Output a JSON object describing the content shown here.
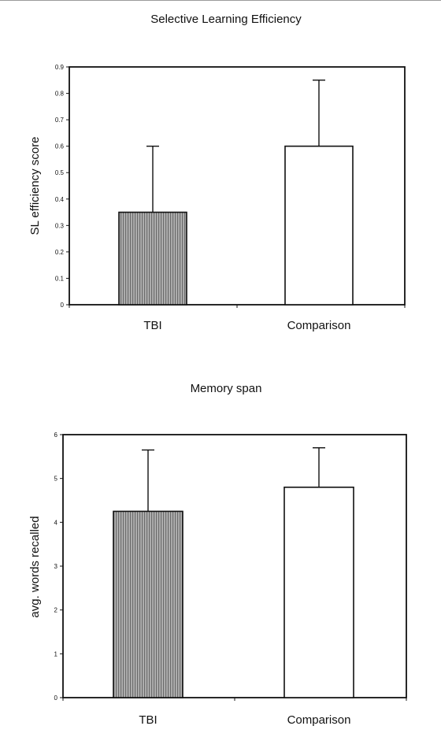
{
  "chart_data": [
    {
      "type": "bar",
      "title": "Selective Learning Efficiency",
      "ylabel": "SL efficiency score",
      "xlabel": "",
      "categories": [
        "TBI",
        "Comparison"
      ],
      "values": [
        0.35,
        0.6
      ],
      "error_upper": [
        0.6,
        0.85
      ],
      "ylim": [
        0,
        0.9
      ],
      "yticks": [
        "0",
        "0.1",
        "0.2",
        "0.3",
        "0.4",
        "0.5",
        "0.6",
        "0.7",
        "0.8",
        "0.9"
      ],
      "grid": false,
      "bar_fills": [
        "#9e9e9e",
        "#ffffff"
      ]
    },
    {
      "type": "bar",
      "title": "Memory span",
      "ylabel": "avg. words recalled",
      "xlabel": "",
      "categories": [
        "TBI",
        "Comparison"
      ],
      "values": [
        4.25,
        4.8
      ],
      "error_upper": [
        5.65,
        5.7
      ],
      "ylim": [
        0,
        6
      ],
      "yticks": [
        "0",
        "1",
        "2",
        "3",
        "4",
        "5",
        "6"
      ],
      "grid": false,
      "bar_fills": [
        "#9e9e9e",
        "#ffffff"
      ]
    }
  ]
}
